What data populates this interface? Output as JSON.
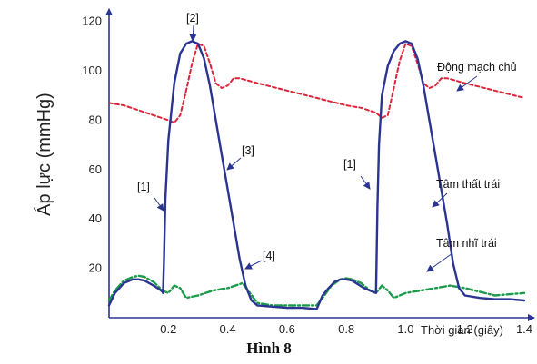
{
  "chart_data": {
    "type": "line",
    "ylabel": "Áp lực (mmHg)",
    "xlabel": "Thời gian (giây)",
    "caption": "Hình 8",
    "xlim": [
      0,
      1.4
    ],
    "ylim": [
      0,
      125
    ],
    "x_ticks": [
      0.2,
      0.4,
      0.6,
      0.8,
      1.0,
      1.2,
      1.4
    ],
    "x_tick_labels": [
      "0.2",
      "0.4",
      "0.6",
      "0.8",
      "1.0",
      "1.2",
      "1.4"
    ],
    "y_ticks": [
      20,
      40,
      60,
      80,
      100,
      120
    ],
    "y_tick_labels": [
      "20",
      "40",
      "60",
      "80",
      "100",
      "120"
    ],
    "colors": {
      "aorta": "#d9263b",
      "ventricle": "#2b3591",
      "atrium": "#1a9a4a",
      "axis": "#2b3591"
    },
    "series": [
      {
        "key": "aorta",
        "name": "Động mạch chủ",
        "style": "dashed",
        "x": [
          0.0,
          0.05,
          0.1,
          0.15,
          0.2,
          0.22,
          0.24,
          0.26,
          0.28,
          0.3,
          0.32,
          0.34,
          0.36,
          0.38,
          0.4,
          0.42,
          0.44,
          0.5,
          0.6,
          0.7,
          0.8,
          0.85,
          0.9,
          0.92,
          0.94,
          0.96,
          0.98,
          1.0,
          1.02,
          1.04,
          1.06,
          1.08,
          1.1,
          1.12,
          1.14,
          1.2,
          1.3,
          1.4
        ],
        "y": [
          87,
          86,
          84,
          82,
          80,
          79,
          82,
          92,
          103,
          111,
          110,
          103,
          95,
          93,
          94,
          97,
          97,
          95,
          92,
          89,
          86,
          85,
          83,
          81,
          82,
          93,
          104,
          111,
          110,
          103,
          95,
          93,
          94,
          97,
          97,
          95,
          92,
          89
        ]
      },
      {
        "key": "ventricle",
        "name": "Tâm thất trái",
        "style": "solid",
        "x": [
          0.0,
          0.02,
          0.05,
          0.08,
          0.1,
          0.12,
          0.15,
          0.17,
          0.18,
          0.182,
          0.185,
          0.19,
          0.2,
          0.22,
          0.24,
          0.26,
          0.28,
          0.3,
          0.32,
          0.34,
          0.36,
          0.38,
          0.4,
          0.42,
          0.44,
          0.46,
          0.48,
          0.5,
          0.55,
          0.6,
          0.65,
          0.7,
          0.72,
          0.74,
          0.76,
          0.78,
          0.8,
          0.82,
          0.84,
          0.86,
          0.88,
          0.9,
          0.902,
          0.905,
          0.91,
          0.92,
          0.94,
          0.96,
          0.98,
          1.0,
          1.02,
          1.04,
          1.06,
          1.08,
          1.1,
          1.12,
          1.14,
          1.16,
          1.18,
          1.2,
          1.25,
          1.3,
          1.35,
          1.4
        ],
        "y": [
          5,
          10,
          14,
          15.5,
          15.5,
          15,
          13,
          11.5,
          10.5,
          10,
          22,
          48,
          72,
          95,
          107,
          111,
          112,
          111,
          105,
          94,
          80,
          66,
          52,
          38,
          24,
          13,
          7,
          5,
          4.5,
          4,
          4,
          3.5,
          9,
          12,
          14.5,
          15.5,
          15.5,
          15,
          13.5,
          12,
          11,
          10,
          22,
          45,
          70,
          90,
          102,
          108,
          111,
          112,
          111,
          105,
          94,
          80,
          66,
          52,
          38,
          22,
          12,
          9,
          8,
          7.5,
          7.5,
          7
        ]
      },
      {
        "key": "atrium",
        "name": "Tâm nhĩ trái",
        "style": "dash-dot",
        "x": [
          0.0,
          0.02,
          0.05,
          0.08,
          0.1,
          0.12,
          0.15,
          0.18,
          0.2,
          0.22,
          0.24,
          0.26,
          0.3,
          0.35,
          0.4,
          0.45,
          0.5,
          0.55,
          0.6,
          0.65,
          0.7,
          0.72,
          0.75,
          0.78,
          0.8,
          0.82,
          0.85,
          0.88,
          0.9,
          0.92,
          0.94,
          0.96,
          0.98,
          1.0,
          1.05,
          1.1,
          1.15,
          1.2,
          1.3,
          1.4
        ],
        "y": [
          7,
          11,
          15,
          16.5,
          17,
          16.5,
          14.5,
          11,
          10,
          13,
          12,
          8,
          9,
          11,
          12,
          14,
          6,
          5,
          5,
          5,
          5,
          8,
          13,
          15.5,
          16,
          15.5,
          14,
          11,
          10,
          13,
          11,
          8,
          9,
          10,
          11,
          12,
          13,
          12,
          9,
          10
        ]
      }
    ],
    "labels": {
      "aorta": "Động mạch chủ",
      "ventricle": "Tâm thất trái",
      "atrium": "Tâm nhĩ trái",
      "m1a": "[1]",
      "m1b": "[1]",
      "m2": "[2]",
      "m3": "[3]",
      "m4": "[4]"
    }
  }
}
